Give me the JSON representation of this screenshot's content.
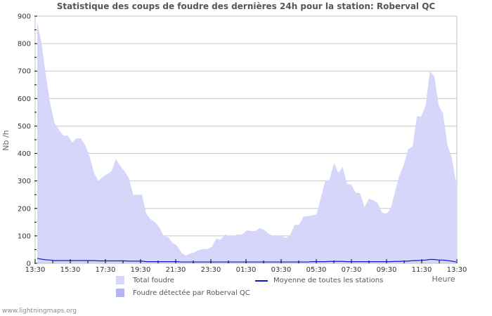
{
  "title": "Statistique des coups de foudre des dernières 24h pour la station: Roberval QC",
  "watermark": "www.lightningmaps.org",
  "legend": {
    "total": "Total foudre",
    "detected": "Foudre détectée par Roberval QC",
    "average": "Moyenne de toutes les stations"
  },
  "colors": {
    "total_fill": "#d6d6fb",
    "detected_fill": "#b3b3f5",
    "average_line": "#1414c8",
    "grid": "#c8c8c8",
    "axis": "#c0c0c0"
  },
  "chart_data": {
    "type": "area",
    "title": "Statistique des coups de foudre des dernières 24h pour la station: Roberval QC",
    "xlabel": "Heure",
    "ylabel": "Nb /h",
    "ylim": [
      0,
      900
    ],
    "yticks": [
      0,
      100,
      200,
      300,
      400,
      500,
      600,
      700,
      800,
      900
    ],
    "xticks": [
      "13:30",
      "15:30",
      "17:30",
      "19:30",
      "21:30",
      "23:30",
      "01:30",
      "03:30",
      "05:30",
      "07:30",
      "09:30",
      "11:30",
      "13:30"
    ],
    "grid": true,
    "legend_position": "bottom",
    "x_step_minutes": 15,
    "x_start": "13:30",
    "series": [
      {
        "name": "Total foudre",
        "kind": "area",
        "values": [
          880,
          800,
          680,
          580,
          510,
          485,
          465,
          465,
          440,
          455,
          455,
          430,
          390,
          330,
          300,
          315,
          325,
          335,
          380,
          355,
          335,
          310,
          250,
          250,
          250,
          180,
          160,
          150,
          130,
          100,
          95,
          75,
          65,
          40,
          28,
          35,
          40,
          48,
          52,
          52,
          60,
          90,
          85,
          105,
          100,
          100,
          105,
          105,
          120,
          118,
          118,
          128,
          122,
          108,
          100,
          100,
          100,
          92,
          105,
          140,
          140,
          170,
          172,
          175,
          178,
          240,
          300,
          305,
          365,
          330,
          350,
          290,
          285,
          258,
          255,
          205,
          235,
          230,
          220,
          185,
          180,
          200,
          260,
          320,
          360,
          415,
          425,
          535,
          535,
          575,
          700,
          680,
          575,
          545,
          430,
          385,
          290
        ]
      },
      {
        "name": "Foudre détectée par Roberval QC",
        "kind": "area",
        "values": [
          0,
          0,
          0,
          0,
          0,
          0,
          0,
          0,
          0,
          0,
          0,
          0,
          0,
          0,
          0,
          0,
          0,
          0,
          0,
          0,
          0,
          0,
          0,
          0,
          0,
          0,
          0,
          0,
          0,
          0,
          0,
          0,
          0,
          0,
          0,
          0,
          0,
          0,
          0,
          0,
          0,
          0,
          0,
          0,
          0,
          0,
          0,
          0,
          0,
          0,
          0,
          0,
          0,
          0,
          0,
          0,
          0,
          0,
          0,
          0,
          0,
          0,
          0,
          0,
          0,
          0,
          0,
          0,
          0,
          0,
          0,
          0,
          0,
          0,
          0,
          0,
          0,
          0,
          0,
          0,
          0,
          0,
          0,
          0,
          0,
          0,
          0,
          0,
          0,
          0,
          0,
          0,
          0,
          0,
          0,
          0,
          0
        ]
      },
      {
        "name": "Moyenne de toutes les stations",
        "kind": "line",
        "values": [
          18,
          15,
          13,
          12,
          10,
          10,
          10,
          10,
          10,
          10,
          10,
          10,
          10,
          10,
          9,
          9,
          9,
          9,
          9,
          9,
          9,
          8,
          8,
          8,
          8,
          6,
          6,
          6,
          6,
          6,
          6,
          6,
          6,
          5,
          5,
          5,
          5,
          5,
          5,
          5,
          5,
          5,
          5,
          5,
          5,
          5,
          5,
          5,
          5,
          5,
          5,
          5,
          5,
          5,
          5,
          5,
          5,
          5,
          5,
          5,
          5,
          5,
          5,
          6,
          6,
          6,
          6,
          7,
          7,
          7,
          7,
          6,
          6,
          6,
          6,
          6,
          6,
          6,
          6,
          6,
          6,
          6,
          7,
          7,
          8,
          8,
          10,
          10,
          11,
          12,
          14,
          14,
          12,
          12,
          10,
          8,
          5
        ]
      }
    ]
  }
}
